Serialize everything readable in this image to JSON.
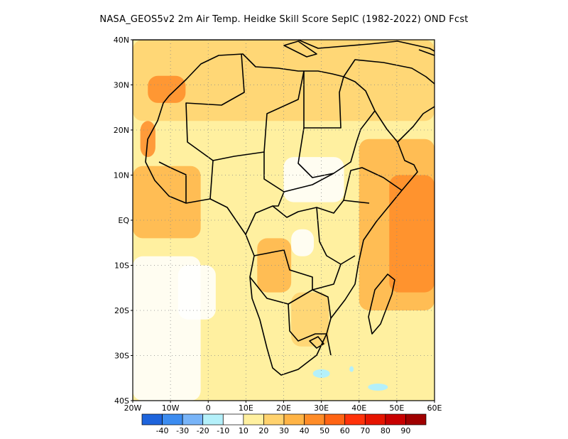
{
  "title": "NASA_GEOS5v2  2m Air Temp. Heidke Skill Score SepIC (1982-2022) OND Fcst",
  "map": {
    "lat_labels": [
      "40N",
      "30N",
      "20N",
      "10N",
      "EQ",
      "10S",
      "20S",
      "30S",
      "40S"
    ],
    "lon_labels": [
      "20W",
      "10W",
      "0",
      "10E",
      "20E",
      "30E",
      "40E",
      "50E",
      "60E"
    ],
    "lat_range": [
      -40,
      40
    ],
    "lon_range": [
      -20,
      60
    ],
    "gridlines": "dotted every 10 degrees"
  },
  "colorbar": {
    "labels": [
      "-40",
      "-30",
      "-20",
      "-10",
      "10",
      "20",
      "30",
      "40",
      "50",
      "60",
      "70",
      "80",
      "90"
    ],
    "colors": [
      "#1e64dc",
      "#3c8cf0",
      "#78b4f8",
      "#b4f0fa",
      "#ffffff",
      "#fff0a0",
      "#ffd26e",
      "#ffb446",
      "#ff8c28",
      "#ff6414",
      "#ff320a",
      "#e61400",
      "#c80000",
      "#a00000"
    ]
  }
}
